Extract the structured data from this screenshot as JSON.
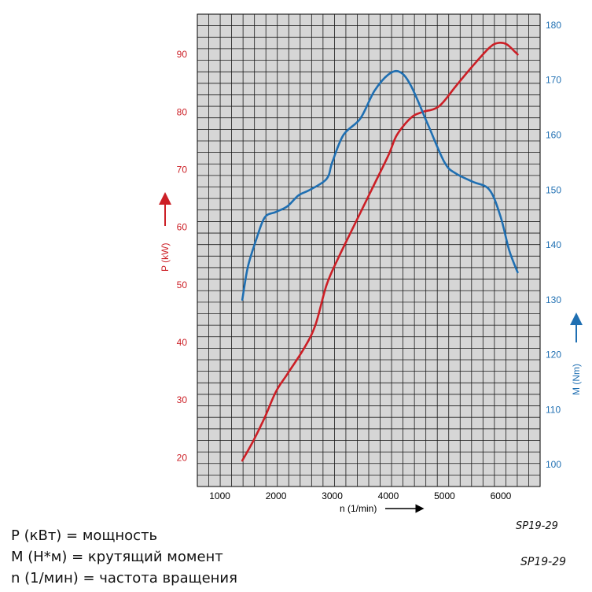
{
  "chart_data": {
    "type": "line",
    "x_axis": {
      "label": "n  (1/min)",
      "ticks": [
        1000,
        2000,
        3000,
        4000,
        5000,
        6000
      ],
      "range": [
        600,
        6700
      ]
    },
    "y_left": {
      "label": "P (kW)",
      "ticks": [
        20,
        30,
        40,
        50,
        60,
        70,
        80,
        90
      ],
      "range": [
        15,
        97
      ],
      "color": "#cc1f26"
    },
    "y_right": {
      "label": "M (Nm)",
      "ticks": [
        100,
        110,
        120,
        130,
        140,
        150,
        160,
        170,
        180
      ],
      "range": [
        96,
        182
      ],
      "color": "#1f6fb2"
    },
    "grid": true,
    "series": [
      {
        "name": "P (kW)",
        "axis": "left",
        "color": "#cc1f26",
        "points": [
          [
            1400,
            19.5
          ],
          [
            1600,
            23
          ],
          [
            1800,
            27
          ],
          [
            2000,
            31.5
          ],
          [
            2200,
            34.5
          ],
          [
            2500,
            39
          ],
          [
            2700,
            43
          ],
          [
            2900,
            50
          ],
          [
            3100,
            54.5
          ],
          [
            3400,
            60.5
          ],
          [
            3700,
            66.5
          ],
          [
            4000,
            72.5
          ],
          [
            4150,
            76
          ],
          [
            4400,
            79
          ],
          [
            4600,
            80
          ],
          [
            4900,
            81
          ],
          [
            5200,
            84.5
          ],
          [
            5500,
            88
          ],
          [
            5800,
            91.2
          ],
          [
            5950,
            92
          ],
          [
            6100,
            91.8
          ],
          [
            6250,
            90.5
          ],
          [
            6300,
            90
          ]
        ]
      },
      {
        "name": "M (Nm)",
        "axis": "right",
        "color": "#1f6fb2",
        "points": [
          [
            1400,
            130
          ],
          [
            1500,
            136
          ],
          [
            1650,
            141
          ],
          [
            1800,
            145
          ],
          [
            2000,
            146
          ],
          [
            2200,
            147
          ],
          [
            2400,
            149
          ],
          [
            2600,
            150
          ],
          [
            2900,
            152
          ],
          [
            3000,
            155
          ],
          [
            3200,
            160
          ],
          [
            3500,
            163
          ],
          [
            3750,
            168
          ],
          [
            4000,
            171
          ],
          [
            4200,
            171.5
          ],
          [
            4400,
            169
          ],
          [
            4700,
            162
          ],
          [
            5000,
            155
          ],
          [
            5200,
            153
          ],
          [
            5500,
            151.5
          ],
          [
            5800,
            150
          ],
          [
            6000,
            145
          ],
          [
            6150,
            139
          ],
          [
            6300,
            135
          ]
        ]
      }
    ]
  },
  "figure_code": "SP19-29",
  "legend": {
    "line1": "P (кВт) = мощность",
    "line2": "M (Н*м) = крутящий момент",
    "line3": "n (1/мин) = частота вращения"
  },
  "caption_code": "SP19-29"
}
